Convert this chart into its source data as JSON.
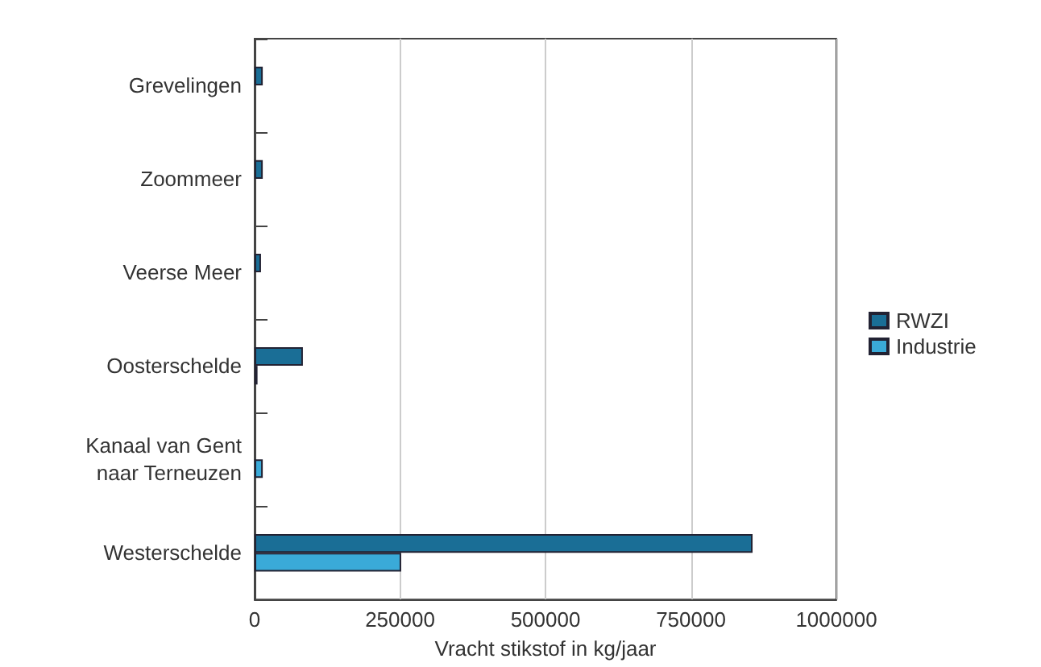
{
  "chart_data": {
    "type": "bar",
    "orientation": "horizontal",
    "xlabel": "Vracht stikstof in kg/jaar",
    "categories": [
      "Grevelingen",
      "Zoommeer",
      "Veerse Meer",
      "Oosterschelde",
      "Kanaal van Gent\nnaar Terneuzen",
      "Westerschelde"
    ],
    "series": [
      {
        "name": "RWZI",
        "color": "#1a6e96",
        "values": [
          14000,
          14000,
          11000,
          83000,
          null,
          856000
        ]
      },
      {
        "name": "Industrie",
        "color": "#3aaad8",
        "values": [
          null,
          null,
          null,
          5000,
          14000,
          252000
        ]
      }
    ],
    "xlim": [
      0,
      1000000
    ],
    "xticks": [
      0,
      250000,
      500000,
      750000,
      1000000
    ],
    "grid": "x",
    "legend": "right"
  }
}
